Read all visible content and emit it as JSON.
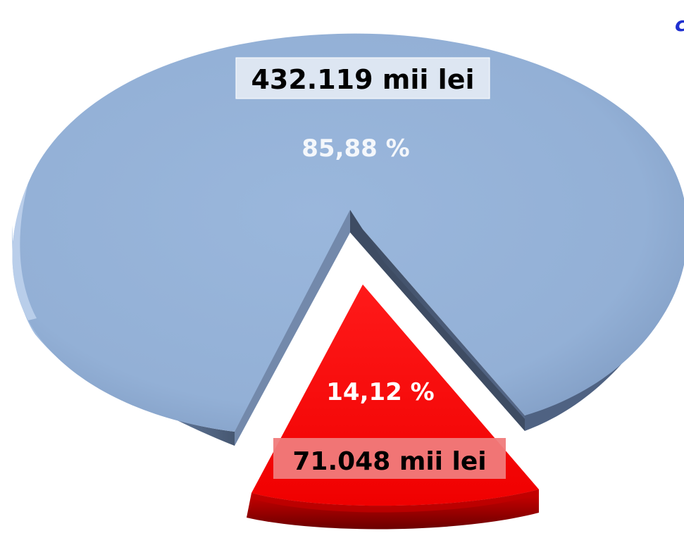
{
  "chart_data": {
    "type": "pie",
    "title": "",
    "slices": [
      {
        "value_label": "432.119 mii lei",
        "value": 432119,
        "unit": "mii lei",
        "percent": 85.88,
        "percent_label": "85,88 %",
        "color": "#95b3d7"
      },
      {
        "value_label": "71.048 mii lei",
        "value": 71048,
        "unit": "mii lei",
        "percent": 14.12,
        "percent_label": "14,12 %",
        "color": "#ff0000"
      }
    ]
  },
  "clipped_text": "c"
}
